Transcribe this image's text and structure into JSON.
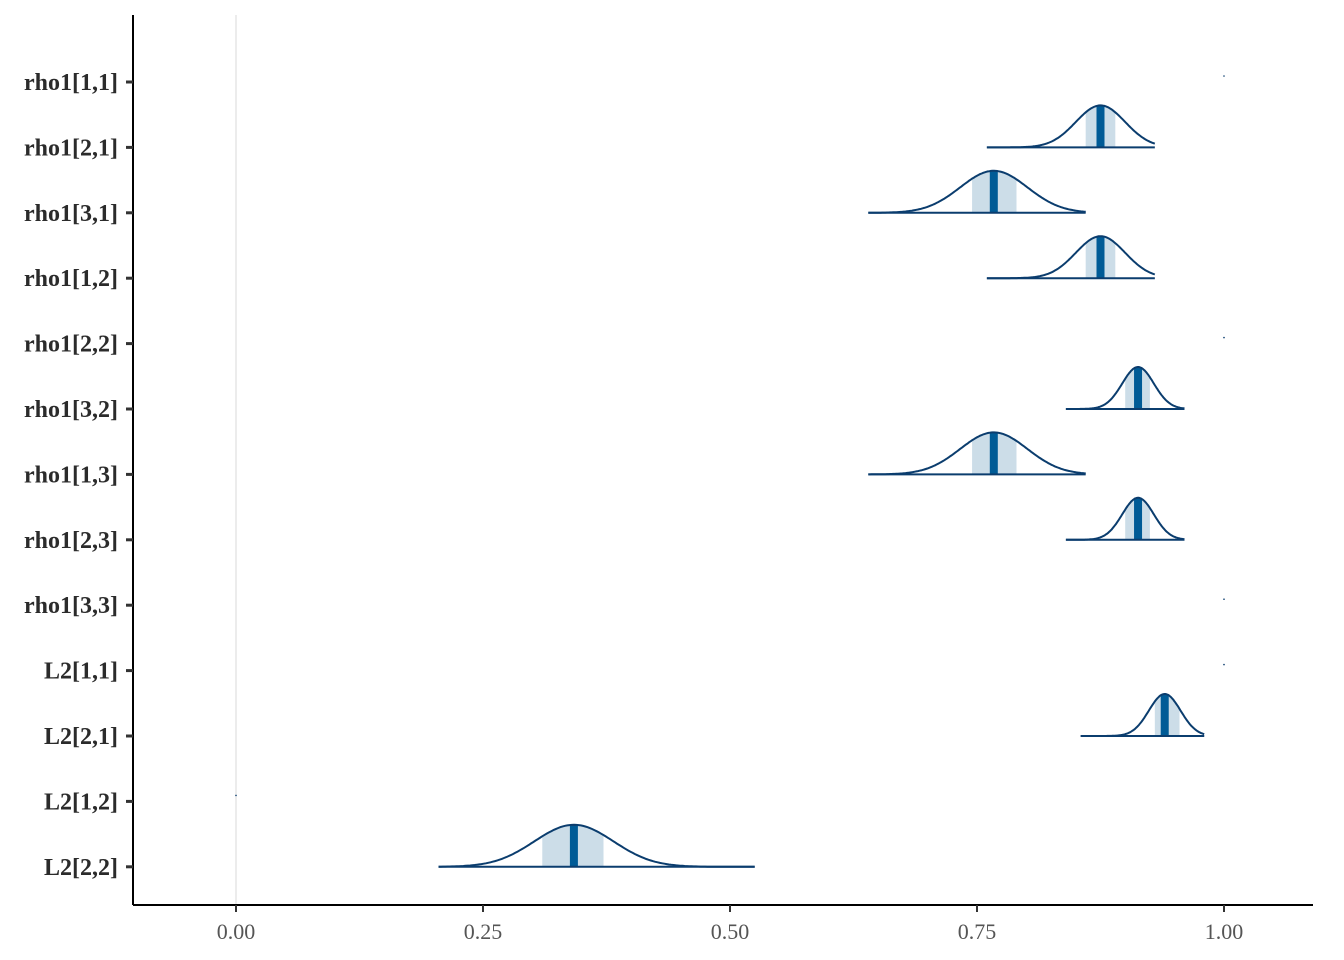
{
  "chart_data": {
    "type": "ridgeline",
    "xlim": [
      -0.1,
      1.1
    ],
    "x_ticks": [
      0.0,
      0.25,
      0.5,
      0.75,
      1.0
    ],
    "x_tick_labels": [
      "0.00",
      "0.25",
      "0.50",
      "0.75",
      "1.00"
    ],
    "reference_line_x": 0,
    "grid": false,
    "colors": {
      "outline": "#0b3d6e",
      "median": "#005b96",
      "interval": "#ccdde8",
      "axis": "#000000",
      "ref_line": "#e6e6e6"
    },
    "parameters": [
      {
        "label": "rho1[1,1]",
        "point": 1.0
      },
      {
        "label": "rho1[2,1]",
        "median": 0.875,
        "interval": [
          0.86,
          0.89
        ],
        "range": [
          0.76,
          0.93
        ],
        "sd": 0.025
      },
      {
        "label": "rho1[3,1]",
        "median": 0.767,
        "interval": [
          0.745,
          0.79
        ],
        "range": [
          0.64,
          0.86
        ],
        "sd": 0.034
      },
      {
        "label": "rho1[1,2]",
        "median": 0.875,
        "interval": [
          0.86,
          0.89
        ],
        "range": [
          0.76,
          0.93
        ],
        "sd": 0.025
      },
      {
        "label": "rho1[2,2]",
        "point": 1.0
      },
      {
        "label": "rho1[3,2]",
        "median": 0.913,
        "interval": [
          0.9,
          0.925
        ],
        "range": [
          0.84,
          0.96
        ],
        "sd": 0.016
      },
      {
        "label": "rho1[1,3]",
        "median": 0.767,
        "interval": [
          0.745,
          0.79
        ],
        "range": [
          0.64,
          0.86
        ],
        "sd": 0.034
      },
      {
        "label": "rho1[2,3]",
        "median": 0.913,
        "interval": [
          0.9,
          0.925
        ],
        "range": [
          0.84,
          0.96
        ],
        "sd": 0.016
      },
      {
        "label": "rho1[3,3]",
        "point": 1.0
      },
      {
        "label": "L2[1,1]",
        "point": 1.0
      },
      {
        "label": "L2[2,1]",
        "median": 0.94,
        "interval": [
          0.93,
          0.955
        ],
        "range": [
          0.855,
          0.98
        ],
        "sd": 0.016
      },
      {
        "label": "L2[1,2]",
        "point": 0.0
      },
      {
        "label": "L2[2,2]",
        "median": 0.342,
        "interval": [
          0.31,
          0.372
        ],
        "range": [
          0.205,
          0.525
        ],
        "sd": 0.04
      }
    ]
  }
}
